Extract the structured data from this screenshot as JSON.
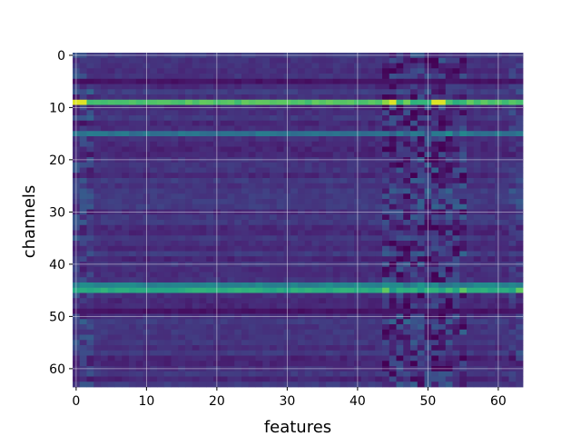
{
  "chart_data": {
    "type": "heatmap",
    "title": "",
    "xlabel": "features",
    "ylabel": "channels",
    "x_ticks": [
      0,
      10,
      20,
      30,
      40,
      50,
      60
    ],
    "y_ticks": [
      0,
      10,
      20,
      30,
      40,
      50,
      60
    ],
    "x_tick_labels": [
      "0",
      "10",
      "20",
      "30",
      "40",
      "50",
      "60"
    ],
    "y_tick_labels": [
      "0",
      "10",
      "20",
      "30",
      "40",
      "50",
      "60"
    ],
    "n_features": 64,
    "n_channels": 64,
    "colormap": "viridis",
    "grid": true,
    "y_inverted": true,
    "bright_rows": [
      {
        "channel": 9,
        "level": 0.72,
        "peak_features": [
          0,
          1,
          45,
          51,
          52
        ],
        "peak_level": 0.95
      },
      {
        "channel": 15,
        "level": 0.38
      },
      {
        "channel": 44,
        "level": 0.45
      },
      {
        "channel": 45,
        "level": 0.62,
        "peak_features": [
          44,
          63
        ],
        "peak_level": 0.75
      }
    ],
    "dark_rows": [
      5,
      49
    ],
    "background_level": 0.14,
    "noisy_feature_range": [
      44,
      55
    ],
    "colors": {
      "c0": "#440154",
      "c1": "#482878",
      "c2": "#3e4a89",
      "c3": "#31688e",
      "c4": "#26828e",
      "c5": "#1f9e89",
      "c6": "#35b779",
      "c7": "#6ece58",
      "c8": "#b5de2b",
      "c9": "#fde725"
    }
  }
}
